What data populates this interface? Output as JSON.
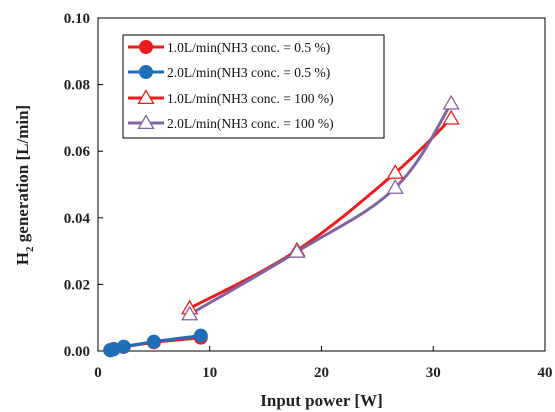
{
  "chart_data": {
    "type": "line",
    "xlabel": "Input power [W]",
    "ylabel_main": "H",
    "ylabel_sub": "2",
    "ylabel_rest": " generation [L/min]",
    "xlim": [
      0,
      40
    ],
    "ylim": [
      0,
      0.1
    ],
    "x_ticks": [
      "0",
      "10",
      "20",
      "30",
      "40"
    ],
    "y_ticks": [
      "0.00",
      "0.02",
      "0.04",
      "0.06",
      "0.08",
      "0.10"
    ],
    "x_tick_values": [
      0,
      10,
      20,
      30,
      40
    ],
    "y_tick_values": [
      0,
      0.02,
      0.04,
      0.06,
      0.08,
      0.1
    ],
    "grid": false,
    "legend_position": "top-left",
    "series": [
      {
        "name": "1.0L/min(NH3 conc. = 0.5 %)",
        "color": "#ee1c1c",
        "marker": "circle-filled",
        "x": [
          1.1,
          1.4,
          2.3,
          5.0,
          9.2
        ],
        "y": [
          0.0003,
          0.0006,
          0.0012,
          0.0026,
          0.004
        ]
      },
      {
        "name": "2.0L/min(NH3 conc. = 0.5 %)",
        "color": "#1f6fb8",
        "marker": "circle-filled",
        "x": [
          1.1,
          1.4,
          2.3,
          5.0,
          9.2
        ],
        "y": [
          0.0002,
          0.0005,
          0.0013,
          0.0028,
          0.0046
        ]
      },
      {
        "name": "1.0L/min(NH3 conc. = 100 %)",
        "color": "#ee1c1c",
        "marker": "triangle-open",
        "x": [
          8.2,
          17.8,
          26.6,
          31.6
        ],
        "y": [
          0.0128,
          0.0302,
          0.0535,
          0.0698
        ]
      },
      {
        "name": "2.0L/min(NH3 conc. = 100 %)",
        "color": "#8064a2",
        "marker": "triangle-open",
        "x": [
          8.2,
          17.8,
          26.6,
          31.6
        ],
        "y": [
          0.011,
          0.0298,
          0.049,
          0.0743
        ]
      }
    ]
  }
}
